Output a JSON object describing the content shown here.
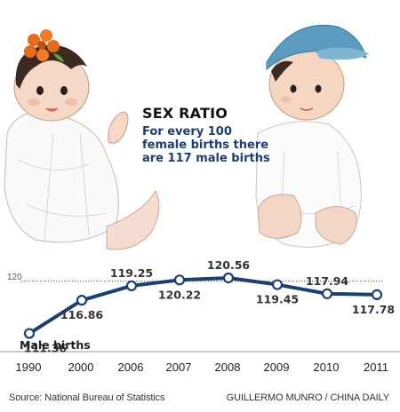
{
  "headline": {
    "title": "SEX RATIO",
    "subtitle_lines": [
      "For every 100",
      "female births there",
      "are 117 male births"
    ]
  },
  "colors": {
    "line": "#1a3f73",
    "accent": "#e86a1c",
    "axis": "#999999"
  },
  "icons": [
    "girl-illustration",
    "boy-illustration"
  ],
  "chart_data": {
    "type": "line",
    "title": "",
    "xlabel": "",
    "ylabel": "",
    "reference_line": {
      "value": 120,
      "label": "120",
      "style": "dotted"
    },
    "categories": [
      "1990",
      "2000",
      "2006",
      "2007",
      "2008",
      "2009",
      "2010",
      "2011"
    ],
    "series": [
      {
        "name": "Male births",
        "values": [
          111.36,
          116.86,
          119.25,
          120.22,
          120.56,
          119.45,
          117.94,
          117.78
        ]
      }
    ],
    "value_labels": [
      "111.36",
      "116.86",
      "119.25",
      "120.22",
      "120.56",
      "119.45",
      "117.94",
      "117.78"
    ],
    "ylim": [
      111,
      121
    ],
    "grid": false,
    "legend": "bottom-left"
  },
  "footer": {
    "source": "Source: National Bureau of Statistics",
    "credit": "GUILLERMO MUNRO / CHINA DAILY"
  }
}
